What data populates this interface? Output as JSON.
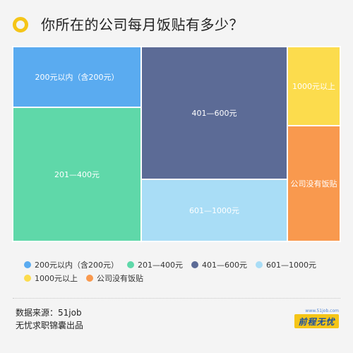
{
  "header": {
    "title": "你所在的公司每月饭贴有多少？"
  },
  "colors": {
    "accent": "#f5c518",
    "background": "#f4f4f4"
  },
  "chart_data": {
    "type": "treemap",
    "title": "你所在的公司每月饭贴有多少？",
    "series": [
      {
        "name": "200元以内（含200元）",
        "color": "#5aabf0"
      },
      {
        "name": "201—400元",
        "color": "#5fd8a9"
      },
      {
        "name": "401—600元",
        "color": "#5c6b96"
      },
      {
        "name": "601—1000元",
        "color": "#a9ddf6"
      },
      {
        "name": "1000元以上",
        "color": "#fcdc4d"
      },
      {
        "name": "公司没有饭贴",
        "color": "#f9994e"
      }
    ],
    "legend_position": "bottom"
  },
  "footer": {
    "source": "数据来源：51job",
    "producer": "无忧求职锦囊出品"
  },
  "logo": {
    "url": "www.51job.com",
    "name": "前程无忧"
  }
}
